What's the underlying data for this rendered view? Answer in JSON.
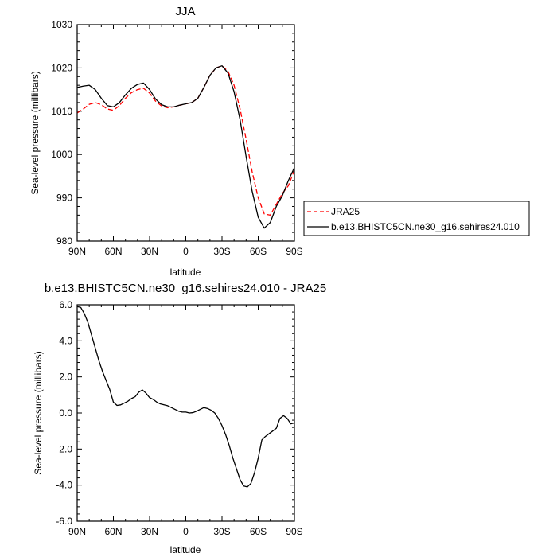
{
  "chart_data": [
    {
      "type": "line",
      "title": "JJA",
      "xlabel": "latitude",
      "ylabel": "Sea-level pressure (millibars)",
      "xlim": [
        90,
        -90
      ],
      "ylim": [
        980,
        1030
      ],
      "x_ticks": [
        90,
        60,
        30,
        0,
        -30,
        -60,
        -90
      ],
      "x_tick_labels": [
        "90N",
        "60N",
        "30N",
        "0",
        "30S",
        "60S",
        "90S"
      ],
      "y_ticks": [
        980,
        990,
        1000,
        1010,
        1020,
        1030
      ],
      "y_tick_labels": [
        "980",
        "990",
        "1000",
        "1010",
        "1020",
        "1030"
      ],
      "legend_position": "right",
      "series": [
        {
          "name": "JRA25",
          "color": "#ff0000",
          "dash": "dashed",
          "x": [
            90,
            85,
            80,
            75,
            70,
            65,
            60,
            55,
            50,
            45,
            40,
            35,
            30,
            25,
            20,
            15,
            10,
            5,
            0,
            -5,
            -10,
            -15,
            -20,
            -25,
            -30,
            -35,
            -40,
            -45,
            -50,
            -55,
            -60,
            -65,
            -70,
            -75,
            -80,
            -85,
            -90
          ],
          "values": [
            1009.6,
            1010.5,
            1011.6,
            1012.0,
            1011.5,
            1010.5,
            1010.2,
            1011.3,
            1013.0,
            1014.3,
            1015.0,
            1015.3,
            1014.2,
            1012.3,
            1011.2,
            1010.8,
            1011.0,
            1011.4,
            1011.7,
            1012.0,
            1013.0,
            1015.5,
            1018.3,
            1020.0,
            1020.5,
            1019.2,
            1016.0,
            1010.5,
            1003.5,
            996.0,
            990.0,
            986.3,
            986.0,
            988.5,
            991.0,
            992.8,
            996.4
          ]
        },
        {
          "name": "b.e13.BHISTC5CN.ne30_g16.sehires24.010",
          "color": "#000000",
          "dash": "solid",
          "x": [
            90,
            85,
            80,
            75,
            70,
            65,
            60,
            55,
            50,
            45,
            40,
            35,
            30,
            25,
            20,
            15,
            10,
            5,
            0,
            -5,
            -10,
            -15,
            -20,
            -25,
            -30,
            -35,
            -40,
            -45,
            -50,
            -55,
            -60,
            -65,
            -70,
            -75,
            -80,
            -85,
            -90
          ],
          "values": [
            1015.5,
            1015.8,
            1016.0,
            1015.0,
            1013.0,
            1011.3,
            1011.0,
            1012.0,
            1013.8,
            1015.3,
            1016.2,
            1016.5,
            1015.0,
            1012.8,
            1011.5,
            1011.0,
            1011.0,
            1011.4,
            1011.7,
            1012.0,
            1013.0,
            1015.5,
            1018.3,
            1020.0,
            1020.5,
            1018.8,
            1014.5,
            1008.0,
            999.5,
            991.5,
            985.5,
            983.0,
            984.3,
            988.0,
            990.5,
            994.0,
            997.0
          ]
        }
      ]
    },
    {
      "type": "line",
      "title": "b.e13.BHISTC5CN.ne30_g16.sehires24.010 - JRA25",
      "xlabel": "latitude",
      "ylabel": "Sea-level pressure (millibars)",
      "xlim": [
        90,
        -90
      ],
      "ylim": [
        -6.0,
        6.0
      ],
      "x_ticks": [
        90,
        60,
        30,
        0,
        -30,
        -60,
        -90
      ],
      "x_tick_labels": [
        "90N",
        "60N",
        "30N",
        "0",
        "30S",
        "60S",
        "90S"
      ],
      "y_ticks": [
        -6,
        -4,
        -2,
        0,
        2,
        4,
        6
      ],
      "y_tick_labels": [
        "-6.0",
        "-4.0",
        "-2.0",
        "0.0",
        "2.0",
        "4.0",
        "6.0"
      ],
      "series": [
        {
          "color": "#000000",
          "dash": "solid",
          "x": [
            90,
            87,
            84,
            81,
            78,
            75,
            72,
            69,
            66,
            63,
            60,
            57,
            54,
            51,
            48,
            45,
            42,
            39,
            36,
            33,
            30,
            27,
            24,
            21,
            18,
            15,
            12,
            9,
            6,
            3,
            0,
            -3,
            -6,
            -9,
            -12,
            -15,
            -18,
            -21,
            -24,
            -27,
            -30,
            -33,
            -36,
            -39,
            -42,
            -45,
            -48,
            -51,
            -54,
            -57,
            -60,
            -63,
            -66,
            -69,
            -72,
            -75,
            -78,
            -81,
            -84,
            -87,
            -90
          ],
          "values": [
            5.9,
            5.85,
            5.5,
            5.0,
            4.3,
            3.6,
            2.9,
            2.3,
            1.8,
            1.3,
            0.6,
            0.42,
            0.45,
            0.55,
            0.65,
            0.8,
            0.9,
            1.15,
            1.28,
            1.1,
            0.85,
            0.75,
            0.6,
            0.5,
            0.45,
            0.4,
            0.3,
            0.2,
            0.1,
            0.05,
            0.05,
            0.0,
            0.02,
            0.1,
            0.2,
            0.3,
            0.25,
            0.15,
            0.0,
            -0.3,
            -0.7,
            -1.2,
            -1.8,
            -2.5,
            -3.1,
            -3.7,
            -4.05,
            -4.1,
            -3.9,
            -3.3,
            -2.5,
            -1.5,
            -1.3,
            -1.15,
            -1.0,
            -0.85,
            -0.3,
            -0.15,
            -0.3,
            -0.6,
            -0.55
          ]
        }
      ]
    }
  ]
}
